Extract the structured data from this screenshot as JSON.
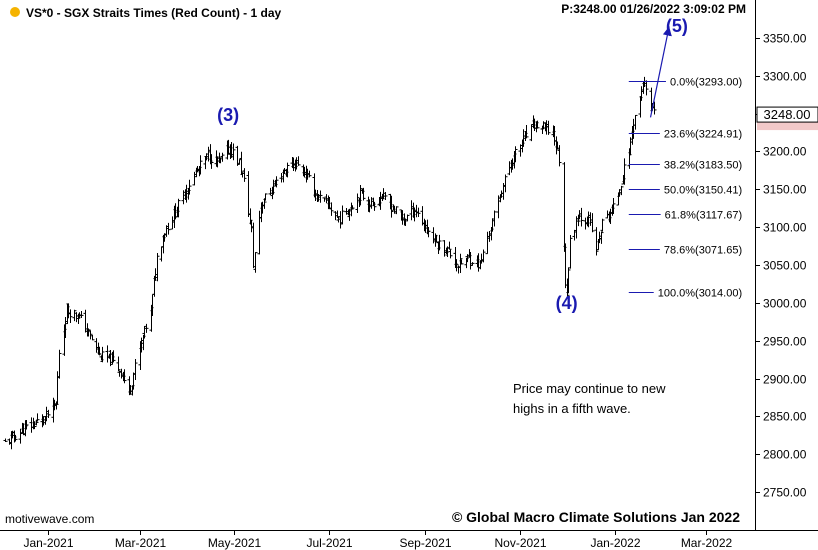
{
  "header": {
    "symbol_title": "VS*0 - SGX Straits Times (Red Count) - 1 day",
    "price_time": "P:3248.00  01/26/2022 3:09:02 PM",
    "dot_color": "#f5b300"
  },
  "watermark": "motivewave.com",
  "copyright": "© Global Macro Climate Solutions Jan 2022",
  "note_lines": [
    "Price may continue to new",
    "highs in a fifth wave."
  ],
  "colors": {
    "accent": "#1a1ab0",
    "fib_line": "#1a1ab0",
    "price_label_bg": "#f2c9c9"
  },
  "chart_data": {
    "type": "ohlc",
    "interval": "1 day",
    "ylim": [
      2700,
      3400
    ],
    "y_ticks": [
      2750,
      2800,
      2850,
      2900,
      2950,
      3000,
      3050,
      3100,
      3150,
      3200,
      3250,
      3300,
      3350
    ],
    "y_tick_labels": [
      "2750.00",
      "2800.00",
      "2850.00",
      "2900.00",
      "2950.00",
      "3000.00",
      "3050.00",
      "3100.00",
      "3150.00",
      "3200.00",
      "3250.00",
      "3300.00",
      "3350.00"
    ],
    "x_range": [
      "2020-12-03",
      "2022-03-31"
    ],
    "x_ticks": [
      "2021-01-01",
      "2021-03-01",
      "2021-05-01",
      "2021-07-01",
      "2021-09-01",
      "2021-11-01",
      "2022-01-01",
      "2022-03-01"
    ],
    "x_tick_labels": [
      "Jan-2021",
      "Mar-2021",
      "May-2021",
      "Jul-2021",
      "Sep-2021",
      "Nov-2021",
      "Jan-2022",
      "Mar-2022"
    ],
    "grid": false,
    "last_price": "3248.00",
    "close_path": [
      [
        "2020-12-04",
        2815
      ],
      [
        "2020-12-11",
        2825
      ],
      [
        "2020-12-18",
        2835
      ],
      [
        "2020-12-24",
        2842
      ],
      [
        "2020-12-31",
        2850
      ],
      [
        "2021-01-06",
        2865
      ],
      [
        "2021-01-08",
        2935
      ],
      [
        "2021-01-13",
        2990
      ],
      [
        "2021-01-20",
        2985
      ],
      [
        "2021-01-27",
        2960
      ],
      [
        "2021-02-03",
        2930
      ],
      [
        "2021-02-10",
        2925
      ],
      [
        "2021-02-17",
        2910
      ],
      [
        "2021-02-22",
        2880
      ],
      [
        "2021-02-26",
        2915
      ],
      [
        "2021-03-03",
        2955
      ],
      [
        "2021-03-08",
        2990
      ],
      [
        "2021-03-12",
        3060
      ],
      [
        "2021-03-17",
        3095
      ],
      [
        "2021-03-24",
        3120
      ],
      [
        "2021-03-31",
        3150
      ],
      [
        "2021-04-07",
        3175
      ],
      [
        "2021-04-14",
        3195
      ],
      [
        "2021-04-21",
        3185
      ],
      [
        "2021-04-28",
        3205
      ],
      [
        "2021-05-04",
        3185
      ],
      [
        "2021-05-07",
        3160
      ],
      [
        "2021-05-12",
        3095
      ],
      [
        "2021-05-13",
        3050
      ],
      [
        "2021-05-18",
        3130
      ],
      [
        "2021-05-25",
        3150
      ],
      [
        "2021-06-02",
        3175
      ],
      [
        "2021-06-09",
        3185
      ],
      [
        "2021-06-16",
        3170
      ],
      [
        "2021-06-23",
        3140
      ],
      [
        "2021-06-30",
        3130
      ],
      [
        "2021-07-07",
        3110
      ],
      [
        "2021-07-14",
        3125
      ],
      [
        "2021-07-21",
        3145
      ],
      [
        "2021-07-28",
        3130
      ],
      [
        "2021-08-04",
        3140
      ],
      [
        "2021-08-11",
        3125
      ],
      [
        "2021-08-18",
        3110
      ],
      [
        "2021-08-25",
        3125
      ],
      [
        "2021-09-01",
        3100
      ],
      [
        "2021-09-08",
        3080
      ],
      [
        "2021-09-15",
        3070
      ],
      [
        "2021-09-22",
        3050
      ],
      [
        "2021-09-29",
        3060
      ],
      [
        "2021-10-06",
        3050
      ],
      [
        "2021-10-13",
        3100
      ],
      [
        "2021-10-20",
        3150
      ],
      [
        "2021-10-27",
        3190
      ],
      [
        "2021-11-03",
        3215
      ],
      [
        "2021-11-10",
        3235
      ],
      [
        "2021-11-17",
        3230
      ],
      [
        "2021-11-22",
        3225
      ],
      [
        "2021-11-26",
        3190
      ],
      [
        "2021-11-30",
        3030
      ],
      [
        "2021-12-01",
        3014
      ],
      [
        "2021-12-03",
        3080
      ],
      [
        "2021-12-08",
        3115
      ],
      [
        "2021-12-15",
        3110
      ],
      [
        "2021-12-20",
        3070
      ],
      [
        "2021-12-24",
        3105
      ],
      [
        "2021-12-31",
        3125
      ],
      [
        "2022-01-05",
        3160
      ],
      [
        "2022-01-10",
        3200
      ],
      [
        "2022-01-13",
        3240
      ],
      [
        "2022-01-17",
        3270
      ],
      [
        "2022-01-19",
        3290
      ],
      [
        "2022-01-20",
        3285
      ],
      [
        "2022-01-24",
        3255
      ],
      [
        "2022-01-26",
        3248
      ]
    ],
    "fibonacci": [
      {
        "label": "0.0%(3293.00)",
        "value": 3293.0
      },
      {
        "label": "23.6%(3224.91)",
        "value": 3224.91
      },
      {
        "label": "38.2%(3183.50)",
        "value": 3183.5
      },
      {
        "label": "50.0%(3150.41)",
        "value": 3150.41
      },
      {
        "label": "61.8%(3117.67)",
        "value": 3117.67
      },
      {
        "label": "78.6%(3071.65)",
        "value": 3071.65
      },
      {
        "label": "100.0%(3014.00)",
        "value": 3014.0
      }
    ],
    "fib_x_start": "2022-01-10",
    "fib_x_end": "2022-03-24",
    "wave_labels": [
      {
        "text": "(3)",
        "x": "2021-04-27",
        "y": 3240
      },
      {
        "text": "(4)",
        "x": "2021-12-01",
        "y": 2992
      },
      {
        "text": "(5)",
        "x": "2022-02-10",
        "y": 3358
      }
    ],
    "projection_arrow": {
      "from": [
        "2022-01-24",
        3245
      ],
      "to": [
        "2022-02-05",
        3365
      ]
    }
  }
}
